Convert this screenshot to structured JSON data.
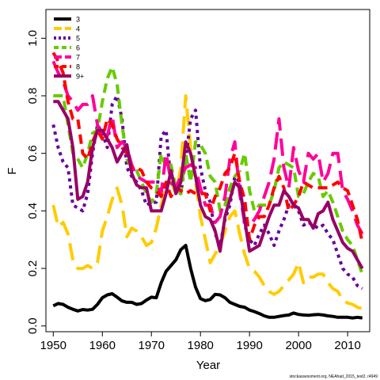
{
  "chart_data": {
    "type": "line",
    "xlabel": "Year",
    "ylabel": "F",
    "xlim": [
      1948.5,
      2014.5
    ],
    "ylim": [
      -0.02,
      1.1
    ],
    "xticks": [
      "1950",
      "1960",
      "1970",
      "1980",
      "1990",
      "2000",
      "2010"
    ],
    "yticks": [
      "0.0",
      "0.2",
      "0.4",
      "0.6",
      "0.8",
      "1.0"
    ],
    "legend_position": "top-left",
    "footnote": "stockassessment.org, NEAhad_2015_test2, r4949",
    "x": [
      1950,
      1951,
      1952,
      1953,
      1954,
      1955,
      1956,
      1957,
      1958,
      1959,
      1960,
      1961,
      1962,
      1963,
      1964,
      1965,
      1966,
      1967,
      1968,
      1969,
      1970,
      1971,
      1972,
      1973,
      1974,
      1975,
      1976,
      1977,
      1978,
      1979,
      1980,
      1981,
      1982,
      1983,
      1984,
      1985,
      1986,
      1987,
      1988,
      1989,
      1990,
      1991,
      1992,
      1993,
      1994,
      1995,
      1996,
      1997,
      1998,
      1999,
      2000,
      2001,
      2002,
      2003,
      2004,
      2005,
      2006,
      2007,
      2008,
      2009,
      2010,
      2011,
      2012,
      2013
    ],
    "series": [
      {
        "name": "3",
        "color": "#000000",
        "dash": "solid",
        "values": [
          0.07,
          0.078,
          0.075,
          0.065,
          0.058,
          0.052,
          0.057,
          0.055,
          0.058,
          0.075,
          0.098,
          0.108,
          0.112,
          0.1,
          0.087,
          0.082,
          0.082,
          0.075,
          0.078,
          0.09,
          0.1,
          0.098,
          0.15,
          0.19,
          0.21,
          0.23,
          0.265,
          0.28,
          0.2,
          0.135,
          0.095,
          0.088,
          0.092,
          0.11,
          0.108,
          0.098,
          0.082,
          0.075,
          0.068,
          0.065,
          0.055,
          0.05,
          0.043,
          0.035,
          0.03,
          0.03,
          0.033,
          0.036,
          0.038,
          0.045,
          0.04,
          0.038,
          0.037,
          0.039,
          0.04,
          0.038,
          0.035,
          0.033,
          0.03,
          0.03,
          0.03,
          0.028,
          0.03,
          0.028
        ]
      },
      {
        "name": "4",
        "color": "#ffcc00",
        "dash": "long",
        "values": [
          0.42,
          0.345,
          0.36,
          0.32,
          0.23,
          0.2,
          0.2,
          0.21,
          0.2,
          0.22,
          0.33,
          0.38,
          0.44,
          0.48,
          0.42,
          0.31,
          0.34,
          0.33,
          0.31,
          0.28,
          0.29,
          0.34,
          0.42,
          0.48,
          0.5,
          0.46,
          0.55,
          0.8,
          0.62,
          0.5,
          0.38,
          0.3,
          0.22,
          0.25,
          0.28,
          0.33,
          0.38,
          0.4,
          0.32,
          0.25,
          0.2,
          0.19,
          0.17,
          0.14,
          0.12,
          0.11,
          0.12,
          0.14,
          0.16,
          0.18,
          0.22,
          0.15,
          0.17,
          0.17,
          0.18,
          0.18,
          0.15,
          0.13,
          0.12,
          0.09,
          0.08,
          0.075,
          0.065,
          0.06
        ]
      },
      {
        "name": "5",
        "color": "#660099",
        "dash": "dot",
        "values": [
          0.7,
          0.62,
          0.57,
          0.55,
          0.42,
          0.41,
          0.4,
          0.46,
          0.6,
          0.7,
          0.67,
          0.62,
          0.77,
          0.8,
          0.72,
          0.55,
          0.52,
          0.5,
          0.47,
          0.42,
          0.43,
          0.43,
          0.66,
          0.68,
          0.5,
          0.47,
          0.46,
          0.58,
          0.72,
          0.75,
          0.55,
          0.47,
          0.43,
          0.32,
          0.28,
          0.37,
          0.42,
          0.52,
          0.5,
          0.35,
          0.3,
          0.28,
          0.32,
          0.35,
          0.32,
          0.28,
          0.33,
          0.37,
          0.42,
          0.42,
          0.4,
          0.35,
          0.36,
          0.35,
          0.34,
          0.35,
          0.32,
          0.3,
          0.25,
          0.2,
          0.18,
          0.17,
          0.14,
          0.13
        ]
      },
      {
        "name": "6",
        "color": "#66cc00",
        "dash": "dash",
        "values": [
          0.8,
          0.8,
          0.8,
          0.7,
          0.6,
          0.58,
          0.55,
          0.6,
          0.67,
          0.68,
          0.78,
          0.86,
          0.9,
          0.84,
          0.7,
          0.58,
          0.55,
          0.54,
          0.5,
          0.46,
          0.43,
          0.46,
          0.6,
          0.55,
          0.56,
          0.48,
          0.46,
          0.6,
          0.5,
          0.64,
          0.63,
          0.6,
          0.52,
          0.5,
          0.4,
          0.42,
          0.48,
          0.52,
          0.54,
          0.6,
          0.47,
          0.4,
          0.42,
          0.42,
          0.42,
          0.47,
          0.55,
          0.57,
          0.56,
          0.55,
          0.45,
          0.46,
          0.5,
          0.53,
          0.52,
          0.45,
          0.47,
          0.43,
          0.38,
          0.33,
          0.3,
          0.28,
          0.23,
          0.18
        ]
      },
      {
        "name": "7",
        "color": "#ff0099",
        "dash": "long",
        "values": [
          0.92,
          0.88,
          0.85,
          0.8,
          0.78,
          0.75,
          0.77,
          0.77,
          0.8,
          0.7,
          0.65,
          0.66,
          0.73,
          0.62,
          0.64,
          0.62,
          0.56,
          0.52,
          0.51,
          0.5,
          0.5,
          0.5,
          0.46,
          0.6,
          0.5,
          0.48,
          0.52,
          0.55,
          0.56,
          0.55,
          0.48,
          0.42,
          0.42,
          0.36,
          0.38,
          0.45,
          0.58,
          0.64,
          0.46,
          0.36,
          0.35,
          0.37,
          0.4,
          0.45,
          0.5,
          0.58,
          0.72,
          0.55,
          0.48,
          0.62,
          0.54,
          0.5,
          0.6,
          0.58,
          0.6,
          0.5,
          0.53,
          0.6,
          0.6,
          0.47,
          0.44,
          0.4,
          0.35,
          0.32
        ]
      },
      {
        "name": "8",
        "color": "#ff0000",
        "dash": "dash",
        "values": [
          0.95,
          0.92,
          0.88,
          0.78,
          0.72,
          0.72,
          0.6,
          0.58,
          0.64,
          0.68,
          0.65,
          0.72,
          0.7,
          0.65,
          0.62,
          0.6,
          0.55,
          0.55,
          0.54,
          0.5,
          0.48,
          0.47,
          0.45,
          0.5,
          0.45,
          0.48,
          0.47,
          0.46,
          0.47,
          0.46,
          0.46,
          0.46,
          0.4,
          0.45,
          0.48,
          0.53,
          0.55,
          0.6,
          0.5,
          0.44,
          0.3,
          0.35,
          0.38,
          0.38,
          0.42,
          0.48,
          0.52,
          0.48,
          0.4,
          0.42,
          0.45,
          0.5,
          0.49,
          0.48,
          0.48,
          0.48,
          0.48,
          0.49,
          0.5,
          0.48,
          0.47,
          0.42,
          0.37,
          0.29
        ]
      },
      {
        "name": "9+",
        "color": "#990066",
        "dash": "solid",
        "values": [
          0.78,
          0.78,
          0.75,
          0.72,
          0.62,
          0.44,
          0.45,
          0.5,
          0.62,
          0.68,
          0.68,
          0.65,
          0.62,
          0.57,
          0.6,
          0.63,
          0.53,
          0.49,
          0.48,
          0.48,
          0.4,
          0.4,
          0.4,
          0.46,
          0.54,
          0.46,
          0.5,
          0.64,
          0.6,
          0.52,
          0.42,
          0.38,
          0.37,
          0.33,
          0.26,
          0.38,
          0.44,
          0.5,
          0.48,
          0.37,
          0.26,
          0.27,
          0.28,
          0.33,
          0.38,
          0.42,
          0.42,
          0.47,
          0.45,
          0.42,
          0.41,
          0.37,
          0.37,
          0.34,
          0.39,
          0.4,
          0.43,
          0.37,
          0.33,
          0.29,
          0.27,
          0.26,
          0.23,
          0.2
        ]
      }
    ]
  }
}
